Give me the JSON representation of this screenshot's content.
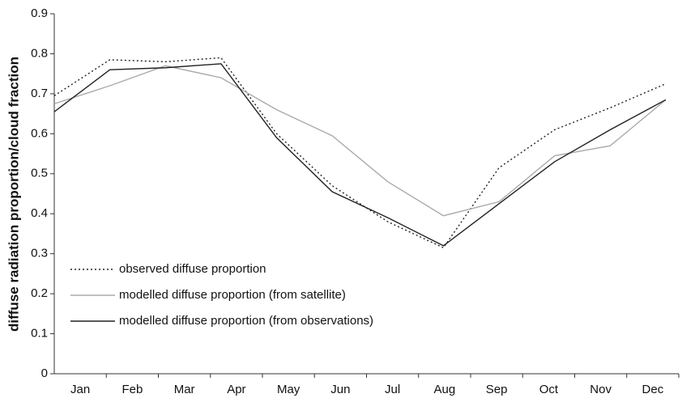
{
  "chart_data": {
    "type": "line",
    "y_label": "diffuse radiation proportion/cloud fraction",
    "categories": [
      "Jan",
      "Feb",
      "Mar",
      "Apr",
      "May",
      "Jun",
      "Jul",
      "Aug",
      "Sep",
      "Oct",
      "Nov",
      "Dec"
    ],
    "series": [
      {
        "name": "observed diffuse proportion",
        "color": "#222222",
        "style": "dotted",
        "values": [
          0.695,
          0.785,
          0.78,
          0.79,
          0.6,
          0.47,
          0.38,
          0.315,
          0.515,
          0.61,
          0.665,
          0.725
        ]
      },
      {
        "name": "modelled diffuse proportion (from satellite)",
        "color": "#aaaaaa",
        "style": "solid",
        "values": [
          0.675,
          0.72,
          0.77,
          0.74,
          0.66,
          0.595,
          0.48,
          0.395,
          0.43,
          0.545,
          0.57,
          0.685
        ]
      },
      {
        "name": "modelled diffuse proportion (from observations)",
        "color": "#222222",
        "style": "solid",
        "values": [
          0.655,
          0.76,
          0.765,
          0.775,
          0.59,
          0.455,
          0.39,
          0.32,
          0.425,
          0.53,
          0.61,
          0.685
        ]
      }
    ],
    "ylim": [
      0,
      0.9
    ],
    "yticks": [
      0,
      0.1,
      0.2,
      0.3,
      0.4,
      0.5,
      0.6,
      0.7,
      0.8,
      0.9
    ],
    "grid": false,
    "legend": "lower left"
  }
}
